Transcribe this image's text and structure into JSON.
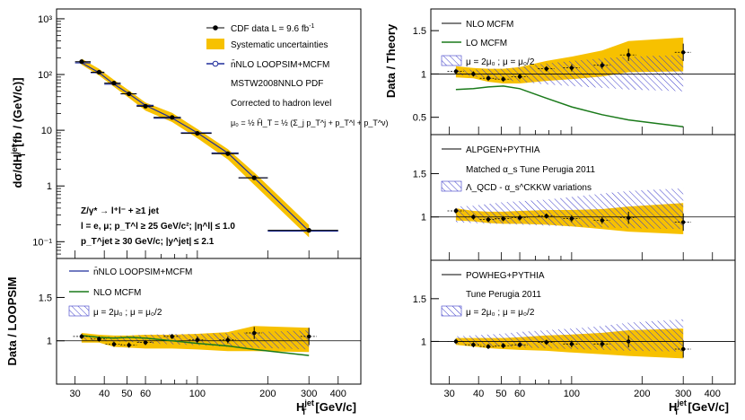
{
  "colors": {
    "band": "#f7c100",
    "data": "#000000",
    "loopsim": "#1f2d9c",
    "lo": "#1a7a1a",
    "hatch": "#3b3bc9",
    "frame": "#000000"
  },
  "x_axis": {
    "min": 25,
    "max": 500,
    "ticks": [
      30,
      40,
      50,
      60,
      100,
      200,
      300,
      400
    ],
    "tick_labels": [
      "30",
      "40",
      "50",
      "60",
      "100",
      "200",
      "300",
      "400"
    ],
    "label_base": "H",
    "label_sub": "T",
    "label_sup": "jet",
    "label_unit": "[GeV/c]"
  },
  "text": {
    "ylabel_main": "dσ/dH",
    "ylabel_main_sub": "T",
    "ylabel_main_sup": "jet",
    "ylabel_main_unit": "[fb / (GeV/c)]",
    "ylabel_ratio_left": "Data / LOOPSIM",
    "ylabel_ratio_right": "Data / Theory",
    "legend_cdf": "CDF data  L = 9.6 fb",
    "legend_cdf_sup": "-1",
    "legend_syst": "Systematic uncertainties",
    "legend_loopsim": "n̄NLO LOOPSIM+MCFM",
    "pdf_label": "MSTW2008NNLO PDF",
    "hadron_label": "Corrected to hadron level",
    "scale_def": "μ₀ = ½ Ĥ_T = ½ (Σ_j p_T^j + p_T^l + p_T^ν)",
    "process": "Z/γ* → l⁺l⁻ + ≥1 jet",
    "cuts1": "l = e, μ;  p_T^l ≥ 25 GeV/c²;  |η^l| ≤ 1.0",
    "cuts2": "p_T^jet ≥ 30 GeV/c;  |y^jet| ≤ 2.1",
    "legend_ll_loopsim": "n̄NLO LOOPSIM+MCFM",
    "legend_ll_nlo": "NLO MCFM",
    "legend_ll_scale": "μ = 2μ₀ ; μ = μ₀/2",
    "legend_ru_nlo": "NLO MCFM",
    "legend_ru_lo": "LO MCFM",
    "legend_ru_scale": "μ = 2μ₀ ; μ = μ₀/2",
    "legend_rm_name": "ALPGEN+PYTHIA",
    "legend_rm_tune": "Matched α_s Tune Perugia 2011",
    "legend_rm_var": "Λ_QCD - α_s^CKKW variations",
    "legend_rl_name": "POWHEG+PYTHIA",
    "legend_rl_tune": "Tune Perugia 2011",
    "legend_rl_scale": "μ = 2μ₀ ; μ = μ₀/2"
  },
  "chart_data": [
    {
      "panel": "main",
      "type": "scatter",
      "xscale": "log",
      "yscale": "log",
      "ylim": [
        0.05,
        1500
      ],
      "yticks": [
        0.1,
        1,
        10,
        100,
        1000
      ],
      "ytick_labels": [
        "10⁻¹",
        "1",
        "10",
        "10²",
        "10³"
      ],
      "x": [
        32,
        38,
        44,
        51,
        60,
        78,
        100,
        135,
        175,
        300
      ],
      "xerr_lo": [
        30,
        35,
        40,
        47,
        55,
        65,
        85,
        115,
        150,
        200
      ],
      "xerr_hi": [
        35,
        40,
        47,
        55,
        65,
        85,
        115,
        150,
        200,
        400
      ],
      "y": [
        170,
        110,
        70,
        45,
        27,
        17,
        8.8,
        3.8,
        1.4,
        0.16
      ],
      "band_lo": [
        150,
        96,
        60,
        38,
        22.5,
        14,
        7.2,
        3.0,
        1.05,
        0.12
      ],
      "band_hi": [
        192,
        126,
        80,
        52,
        31.5,
        20.5,
        10.5,
        4.6,
        1.75,
        0.2
      ],
      "loopsim": [
        162,
        108,
        67,
        45,
        28,
        16.5,
        9.0,
        3.9,
        1.4,
        0.155
      ]
    },
    {
      "panel": "ratio-left",
      "type": "scatter",
      "xscale": "log",
      "ylim": [
        0.5,
        1.95
      ],
      "yticks": [
        1,
        1.5
      ],
      "ytick_labels": [
        "1",
        "1.5"
      ],
      "x": [
        32,
        38,
        44,
        51,
        60,
        78,
        100,
        135,
        175,
        300
      ],
      "y": [
        1.05,
        1.02,
        0.96,
        0.95,
        0.98,
        1.05,
        1.01,
        1.01,
        1.09,
        1.05
      ],
      "yerr": [
        0.03,
        0.03,
        0.03,
        0.03,
        0.03,
        0.03,
        0.04,
        0.04,
        0.07,
        0.1
      ],
      "band_lo": [
        0.98,
        0.98,
        0.93,
        0.92,
        0.91,
        0.91,
        0.9,
        0.88,
        0.88,
        0.87
      ],
      "band_hi": [
        1.09,
        1.07,
        1.06,
        1.06,
        1.07,
        1.07,
        1.08,
        1.1,
        1.17,
        1.15
      ],
      "hatch_lo": [
        1.01,
        1.0,
        0.99,
        0.99,
        0.97,
        0.96,
        0.95,
        0.93,
        0.92,
        0.9
      ],
      "hatch_hi": [
        1.05,
        1.05,
        1.05,
        1.06,
        1.07,
        1.08,
        1.08,
        1.09,
        1.1,
        1.12
      ],
      "nlo": [
        1.06,
        1.04,
        1.03,
        1.04,
        1.03,
        1.0,
        0.97,
        0.94,
        0.9,
        0.83
      ]
    },
    {
      "panel": "ratio-right-upper",
      "type": "scatter",
      "xscale": "log",
      "ylim": [
        0.3,
        1.75
      ],
      "yticks": [
        0.5,
        1,
        1.5
      ],
      "ytick_labels": [
        "0.5",
        "1",
        "1.5"
      ],
      "x": [
        32,
        38,
        44,
        51,
        60,
        78,
        100,
        135,
        175,
        300
      ],
      "y": [
        1.03,
        1.0,
        0.95,
        0.94,
        0.97,
        1.06,
        1.07,
        1.1,
        1.22,
        1.25
      ],
      "yerr": [
        0.03,
        0.03,
        0.03,
        0.03,
        0.03,
        0.03,
        0.04,
        0.04,
        0.07,
        0.1
      ],
      "band_lo": [
        0.96,
        0.95,
        0.91,
        0.89,
        0.89,
        0.92,
        0.94,
        0.97,
        1.02,
        1.03
      ],
      "band_hi": [
        1.09,
        1.07,
        1.06,
        1.06,
        1.08,
        1.15,
        1.2,
        1.27,
        1.38,
        1.42
      ],
      "hatch_lo": [
        0.99,
        0.97,
        0.95,
        0.93,
        0.91,
        0.88,
        0.86,
        0.84,
        0.82,
        0.8
      ],
      "hatch_hi": [
        1.05,
        1.05,
        1.06,
        1.06,
        1.08,
        1.12,
        1.15,
        1.18,
        1.2,
        1.22
      ],
      "lo": [
        0.82,
        0.83,
        0.85,
        0.86,
        0.83,
        0.72,
        0.62,
        0.53,
        0.47,
        0.39
      ]
    },
    {
      "panel": "ratio-right-middle",
      "type": "scatter",
      "xscale": "log",
      "ylim": [
        0.5,
        1.95
      ],
      "yticks": [
        1,
        1.5
      ],
      "ytick_labels": [
        "1",
        "1.5"
      ],
      "x": [
        32,
        38,
        44,
        51,
        60,
        78,
        100,
        135,
        175,
        300
      ],
      "y": [
        1.07,
        1.0,
        0.97,
        0.98,
        0.99,
        1.01,
        0.98,
        0.96,
        0.99,
        0.94
      ],
      "yerr": [
        0.03,
        0.03,
        0.03,
        0.03,
        0.03,
        0.03,
        0.04,
        0.04,
        0.07,
        0.1
      ],
      "band_lo": [
        0.96,
        0.95,
        0.93,
        0.92,
        0.92,
        0.91,
        0.89,
        0.86,
        0.83,
        0.8
      ],
      "band_hi": [
        1.1,
        1.07,
        1.06,
        1.06,
        1.07,
        1.08,
        1.08,
        1.09,
        1.12,
        1.16
      ],
      "hatch_lo": [
        0.94,
        0.93,
        0.92,
        0.92,
        0.91,
        0.9,
        0.89,
        0.88,
        0.87,
        0.86
      ],
      "hatch_hi": [
        1.12,
        1.13,
        1.15,
        1.17,
        1.18,
        1.2,
        1.23,
        1.27,
        1.3,
        1.33
      ]
    },
    {
      "panel": "ratio-right-lower",
      "type": "scatter",
      "xscale": "log",
      "ylim": [
        0.5,
        1.95
      ],
      "yticks": [
        1,
        1.5
      ],
      "ytick_labels": [
        "1",
        "1.5"
      ],
      "x": [
        32,
        38,
        44,
        51,
        60,
        78,
        100,
        135,
        175,
        300
      ],
      "y": [
        1.0,
        0.96,
        0.94,
        0.95,
        0.96,
        0.99,
        0.97,
        0.97,
        1.0,
        0.91
      ],
      "yerr": [
        0.03,
        0.03,
        0.03,
        0.03,
        0.03,
        0.03,
        0.04,
        0.04,
        0.07,
        0.1
      ],
      "band_lo": [
        0.96,
        0.94,
        0.92,
        0.91,
        0.9,
        0.89,
        0.87,
        0.85,
        0.83,
        0.8
      ],
      "band_hi": [
        1.04,
        1.04,
        1.04,
        1.04,
        1.05,
        1.07,
        1.08,
        1.1,
        1.13,
        1.15
      ],
      "hatch_lo": [
        0.97,
        0.96,
        0.95,
        0.94,
        0.93,
        0.92,
        0.91,
        0.9,
        0.89,
        0.88
      ],
      "hatch_hi": [
        1.06,
        1.07,
        1.08,
        1.09,
        1.11,
        1.13,
        1.15,
        1.18,
        1.22,
        1.26
      ]
    }
  ]
}
